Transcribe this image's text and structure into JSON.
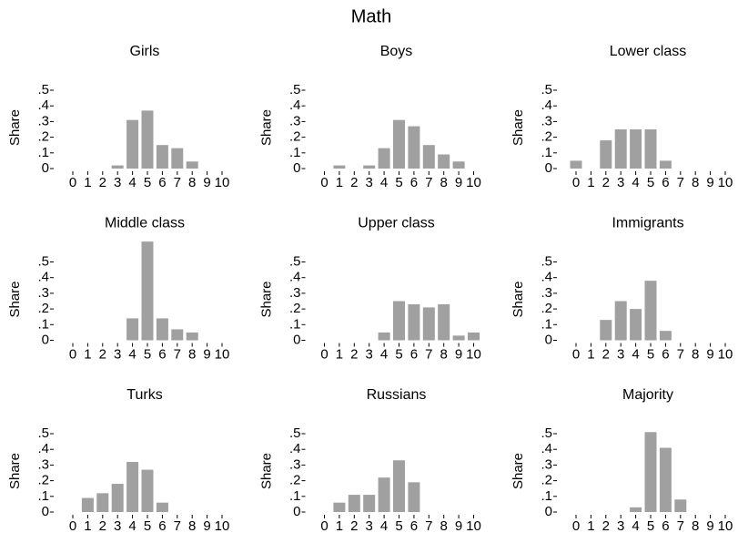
{
  "title": "Math",
  "chart_data": [
    {
      "type": "bar",
      "title": "Girls",
      "y_label": "Share",
      "color": "#a0a0a0",
      "categories": [
        "0",
        "1",
        "2",
        "3",
        "4",
        "5",
        "6",
        "7",
        "8",
        "9",
        "10"
      ],
      "values": [
        0,
        0,
        0,
        0.02,
        0.31,
        0.37,
        0.15,
        0.13,
        0.045,
        0,
        0
      ],
      "ylim": [
        0,
        0.65
      ],
      "yticks": [
        0,
        {
          "value": 0.1,
          "label": ".1"
        },
        {
          "value": 0.2,
          "label": ".2"
        },
        {
          "value": 0.3,
          "label": ".3"
        },
        {
          "value": 0.4,
          "label": ".4"
        },
        {
          "value": 0.5,
          "label": ".5"
        }
      ]
    },
    {
      "type": "bar",
      "title": "Boys",
      "y_label": "Share",
      "color": "#a0a0a0",
      "categories": [
        "0",
        "1",
        "2",
        "3",
        "4",
        "5",
        "6",
        "7",
        "8",
        "9",
        "10"
      ],
      "values": [
        0,
        0.02,
        0,
        0.02,
        0.13,
        0.31,
        0.27,
        0.15,
        0.09,
        0.045,
        0
      ],
      "ylim": [
        0,
        0.65
      ],
      "yticks": [
        0,
        {
          "value": 0.1,
          "label": ".1"
        },
        {
          "value": 0.2,
          "label": ".2"
        },
        {
          "value": 0.3,
          "label": ".3"
        },
        {
          "value": 0.4,
          "label": ".4"
        },
        {
          "value": 0.5,
          "label": ".5"
        }
      ]
    },
    {
      "type": "bar",
      "title": "Lower class",
      "y_label": "Share",
      "color": "#a0a0a0",
      "categories": [
        "0",
        "1",
        "2",
        "3",
        "4",
        "5",
        "6",
        "7",
        "8",
        "9",
        "10"
      ],
      "values": [
        0.05,
        0,
        0.18,
        0.25,
        0.25,
        0.25,
        0.05,
        0,
        0,
        0,
        0
      ],
      "ylim": [
        0,
        0.65
      ],
      "yticks": [
        0,
        {
          "value": 0.1,
          "label": ".1"
        },
        {
          "value": 0.2,
          "label": ".2"
        },
        {
          "value": 0.3,
          "label": ".3"
        },
        {
          "value": 0.4,
          "label": ".4"
        },
        {
          "value": 0.5,
          "label": ".5"
        }
      ]
    },
    {
      "type": "bar",
      "title": "Middle class",
      "y_label": "Share",
      "color": "#a0a0a0",
      "categories": [
        "0",
        "1",
        "2",
        "3",
        "4",
        "5",
        "6",
        "7",
        "8",
        "9",
        "10"
      ],
      "values": [
        0,
        0,
        0,
        0,
        0.14,
        0.63,
        0.14,
        0.07,
        0.05,
        0,
        0
      ],
      "ylim": [
        0,
        0.65
      ],
      "yticks": [
        0,
        {
          "value": 0.1,
          "label": ".1"
        },
        {
          "value": 0.2,
          "label": ".2"
        },
        {
          "value": 0.3,
          "label": ".3"
        },
        {
          "value": 0.4,
          "label": ".4"
        },
        {
          "value": 0.5,
          "label": ".5"
        }
      ]
    },
    {
      "type": "bar",
      "title": "Upper class",
      "y_label": "Share",
      "color": "#a0a0a0",
      "categories": [
        "0",
        "1",
        "2",
        "3",
        "4",
        "5",
        "6",
        "7",
        "8",
        "9",
        "10"
      ],
      "values": [
        0,
        0,
        0,
        0,
        0.05,
        0.25,
        0.23,
        0.21,
        0.23,
        0.03,
        0.05
      ],
      "ylim": [
        0,
        0.65
      ],
      "yticks": [
        0,
        {
          "value": 0.1,
          "label": ".1"
        },
        {
          "value": 0.2,
          "label": ".2"
        },
        {
          "value": 0.3,
          "label": ".3"
        },
        {
          "value": 0.4,
          "label": ".4"
        },
        {
          "value": 0.5,
          "label": ".5"
        }
      ]
    },
    {
      "type": "bar",
      "title": "Immigrants",
      "y_label": "Share",
      "color": "#a0a0a0",
      "categories": [
        "0",
        "1",
        "2",
        "3",
        "4",
        "5",
        "6",
        "7",
        "8",
        "9",
        "10"
      ],
      "values": [
        0,
        0,
        0.13,
        0.25,
        0.2,
        0.38,
        0.06,
        0,
        0,
        0,
        0
      ],
      "ylim": [
        0,
        0.65
      ],
      "yticks": [
        0,
        {
          "value": 0.1,
          "label": ".1"
        },
        {
          "value": 0.2,
          "label": ".2"
        },
        {
          "value": 0.3,
          "label": ".3"
        },
        {
          "value": 0.4,
          "label": ".4"
        },
        {
          "value": 0.5,
          "label": ".5"
        }
      ]
    },
    {
      "type": "bar",
      "title": "Turks",
      "y_label": "Share",
      "color": "#a0a0a0",
      "categories": [
        "0",
        "1",
        "2",
        "3",
        "4",
        "5",
        "6",
        "7",
        "8",
        "9",
        "10"
      ],
      "values": [
        0,
        0.09,
        0.12,
        0.18,
        0.32,
        0.27,
        0.06,
        0,
        0,
        0,
        0
      ],
      "ylim": [
        0,
        0.65
      ],
      "yticks": [
        0,
        {
          "value": 0.1,
          "label": ".1"
        },
        {
          "value": 0.2,
          "label": ".2"
        },
        {
          "value": 0.3,
          "label": ".3"
        },
        {
          "value": 0.4,
          "label": ".4"
        },
        {
          "value": 0.5,
          "label": ".5"
        }
      ]
    },
    {
      "type": "bar",
      "title": "Russians",
      "y_label": "Share",
      "color": "#a0a0a0",
      "categories": [
        "0",
        "1",
        "2",
        "3",
        "4",
        "5",
        "6",
        "7",
        "8",
        "9",
        "10"
      ],
      "values": [
        0,
        0.06,
        0.11,
        0.11,
        0.22,
        0.33,
        0.19,
        0,
        0,
        0,
        0
      ],
      "ylim": [
        0,
        0.65
      ],
      "yticks": [
        0,
        {
          "value": 0.1,
          "label": ".1"
        },
        {
          "value": 0.2,
          "label": ".2"
        },
        {
          "value": 0.3,
          "label": ".3"
        },
        {
          "value": 0.4,
          "label": ".4"
        },
        {
          "value": 0.5,
          "label": ".5"
        }
      ]
    },
    {
      "type": "bar",
      "title": "Majority",
      "y_label": "Share",
      "color": "#a0a0a0",
      "categories": [
        "0",
        "1",
        "2",
        "3",
        "4",
        "5",
        "6",
        "7",
        "8",
        "9",
        "10"
      ],
      "values": [
        0,
        0,
        0,
        0,
        0.03,
        0.51,
        0.41,
        0.08,
        0,
        0,
        0
      ],
      "ylim": [
        0,
        0.65
      ],
      "yticks": [
        0,
        {
          "value": 0.1,
          "label": ".1"
        },
        {
          "value": 0.2,
          "label": ".2"
        },
        {
          "value": 0.3,
          "label": ".3"
        },
        {
          "value": 0.4,
          "label": ".4"
        },
        {
          "value": 0.5,
          "label": ".5"
        }
      ]
    }
  ]
}
